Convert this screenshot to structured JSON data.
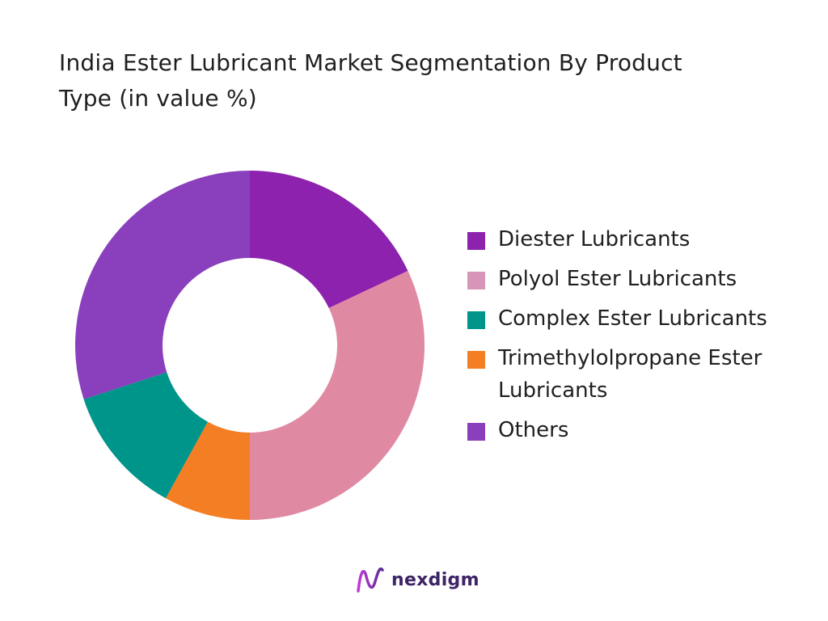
{
  "chart_data": {
    "type": "pie",
    "title": "India Ester Lubricant Market Segmentation By Product Type (in value %)",
    "categories": [
      "Diester Lubricants",
      "Polyol Ester Lubricants",
      "Complex Ester Lubricants",
      "Trimethylolpropane Ester Lubricants",
      "Others"
    ],
    "values": [
      18,
      32,
      12,
      8,
      30
    ],
    "slice_order": [
      0,
      1,
      3,
      2,
      4
    ],
    "colors": [
      "#8c22ad",
      "#df89a3",
      "#00958a",
      "#f47e23",
      "#8a3fbd"
    ],
    "legend_colors": [
      "#8c22ad",
      "#d795b8",
      "#00958a",
      "#f47e23",
      "#8a3fbd"
    ],
    "donut": true,
    "start_angle": "top",
    "direction": "clockwise",
    "legend_position": "right"
  },
  "brand": {
    "name": "nexdigm",
    "logo_icon": "nexdigm-wave-icon",
    "color": "#3d2466"
  }
}
